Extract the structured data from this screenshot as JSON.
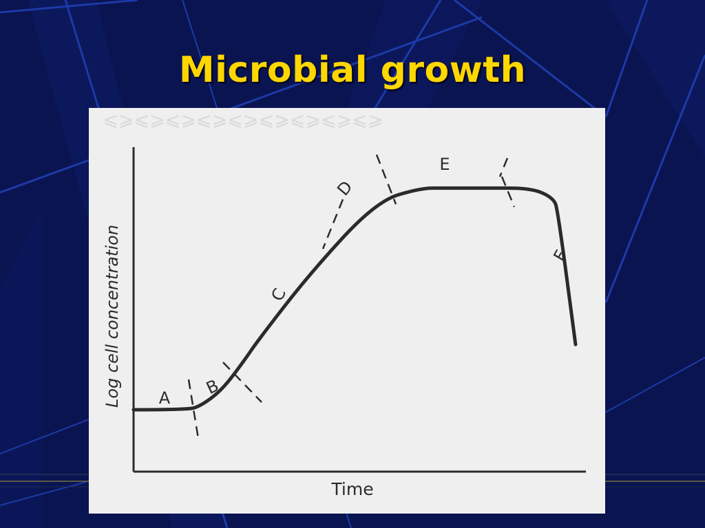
{
  "slide": {
    "title": "Microbial growth",
    "colors": {
      "background": "#0a1450",
      "stripe": "#1c3aa8",
      "title": "#ffd700",
      "panel": "#efefef",
      "ink": "#2b2b2b"
    }
  },
  "chart_data": {
    "type": "line",
    "title": "",
    "xlabel": "Time",
    "ylabel": "Log cell concentration",
    "xlim": [
      0,
      10
    ],
    "ylim": [
      0,
      10
    ],
    "grid": false,
    "series": [
      {
        "x": [
          0,
          1.2,
          1.5,
          2.0,
          2.5,
          2.8,
          4.0,
          5.5,
          6.5,
          7.0,
          7.3,
          8.0,
          9.0,
          9.5,
          9.6,
          10.0
        ],
        "y": [
          1.9,
          1.9,
          2.0,
          2.5,
          3.4,
          4.0,
          6.1,
          8.3,
          8.7,
          8.7,
          8.7,
          8.7,
          8.7,
          8.4,
          8.0,
          3.9
        ]
      }
    ],
    "phase_labels": [
      "A",
      "B",
      "C",
      "D",
      "E",
      "F"
    ]
  }
}
